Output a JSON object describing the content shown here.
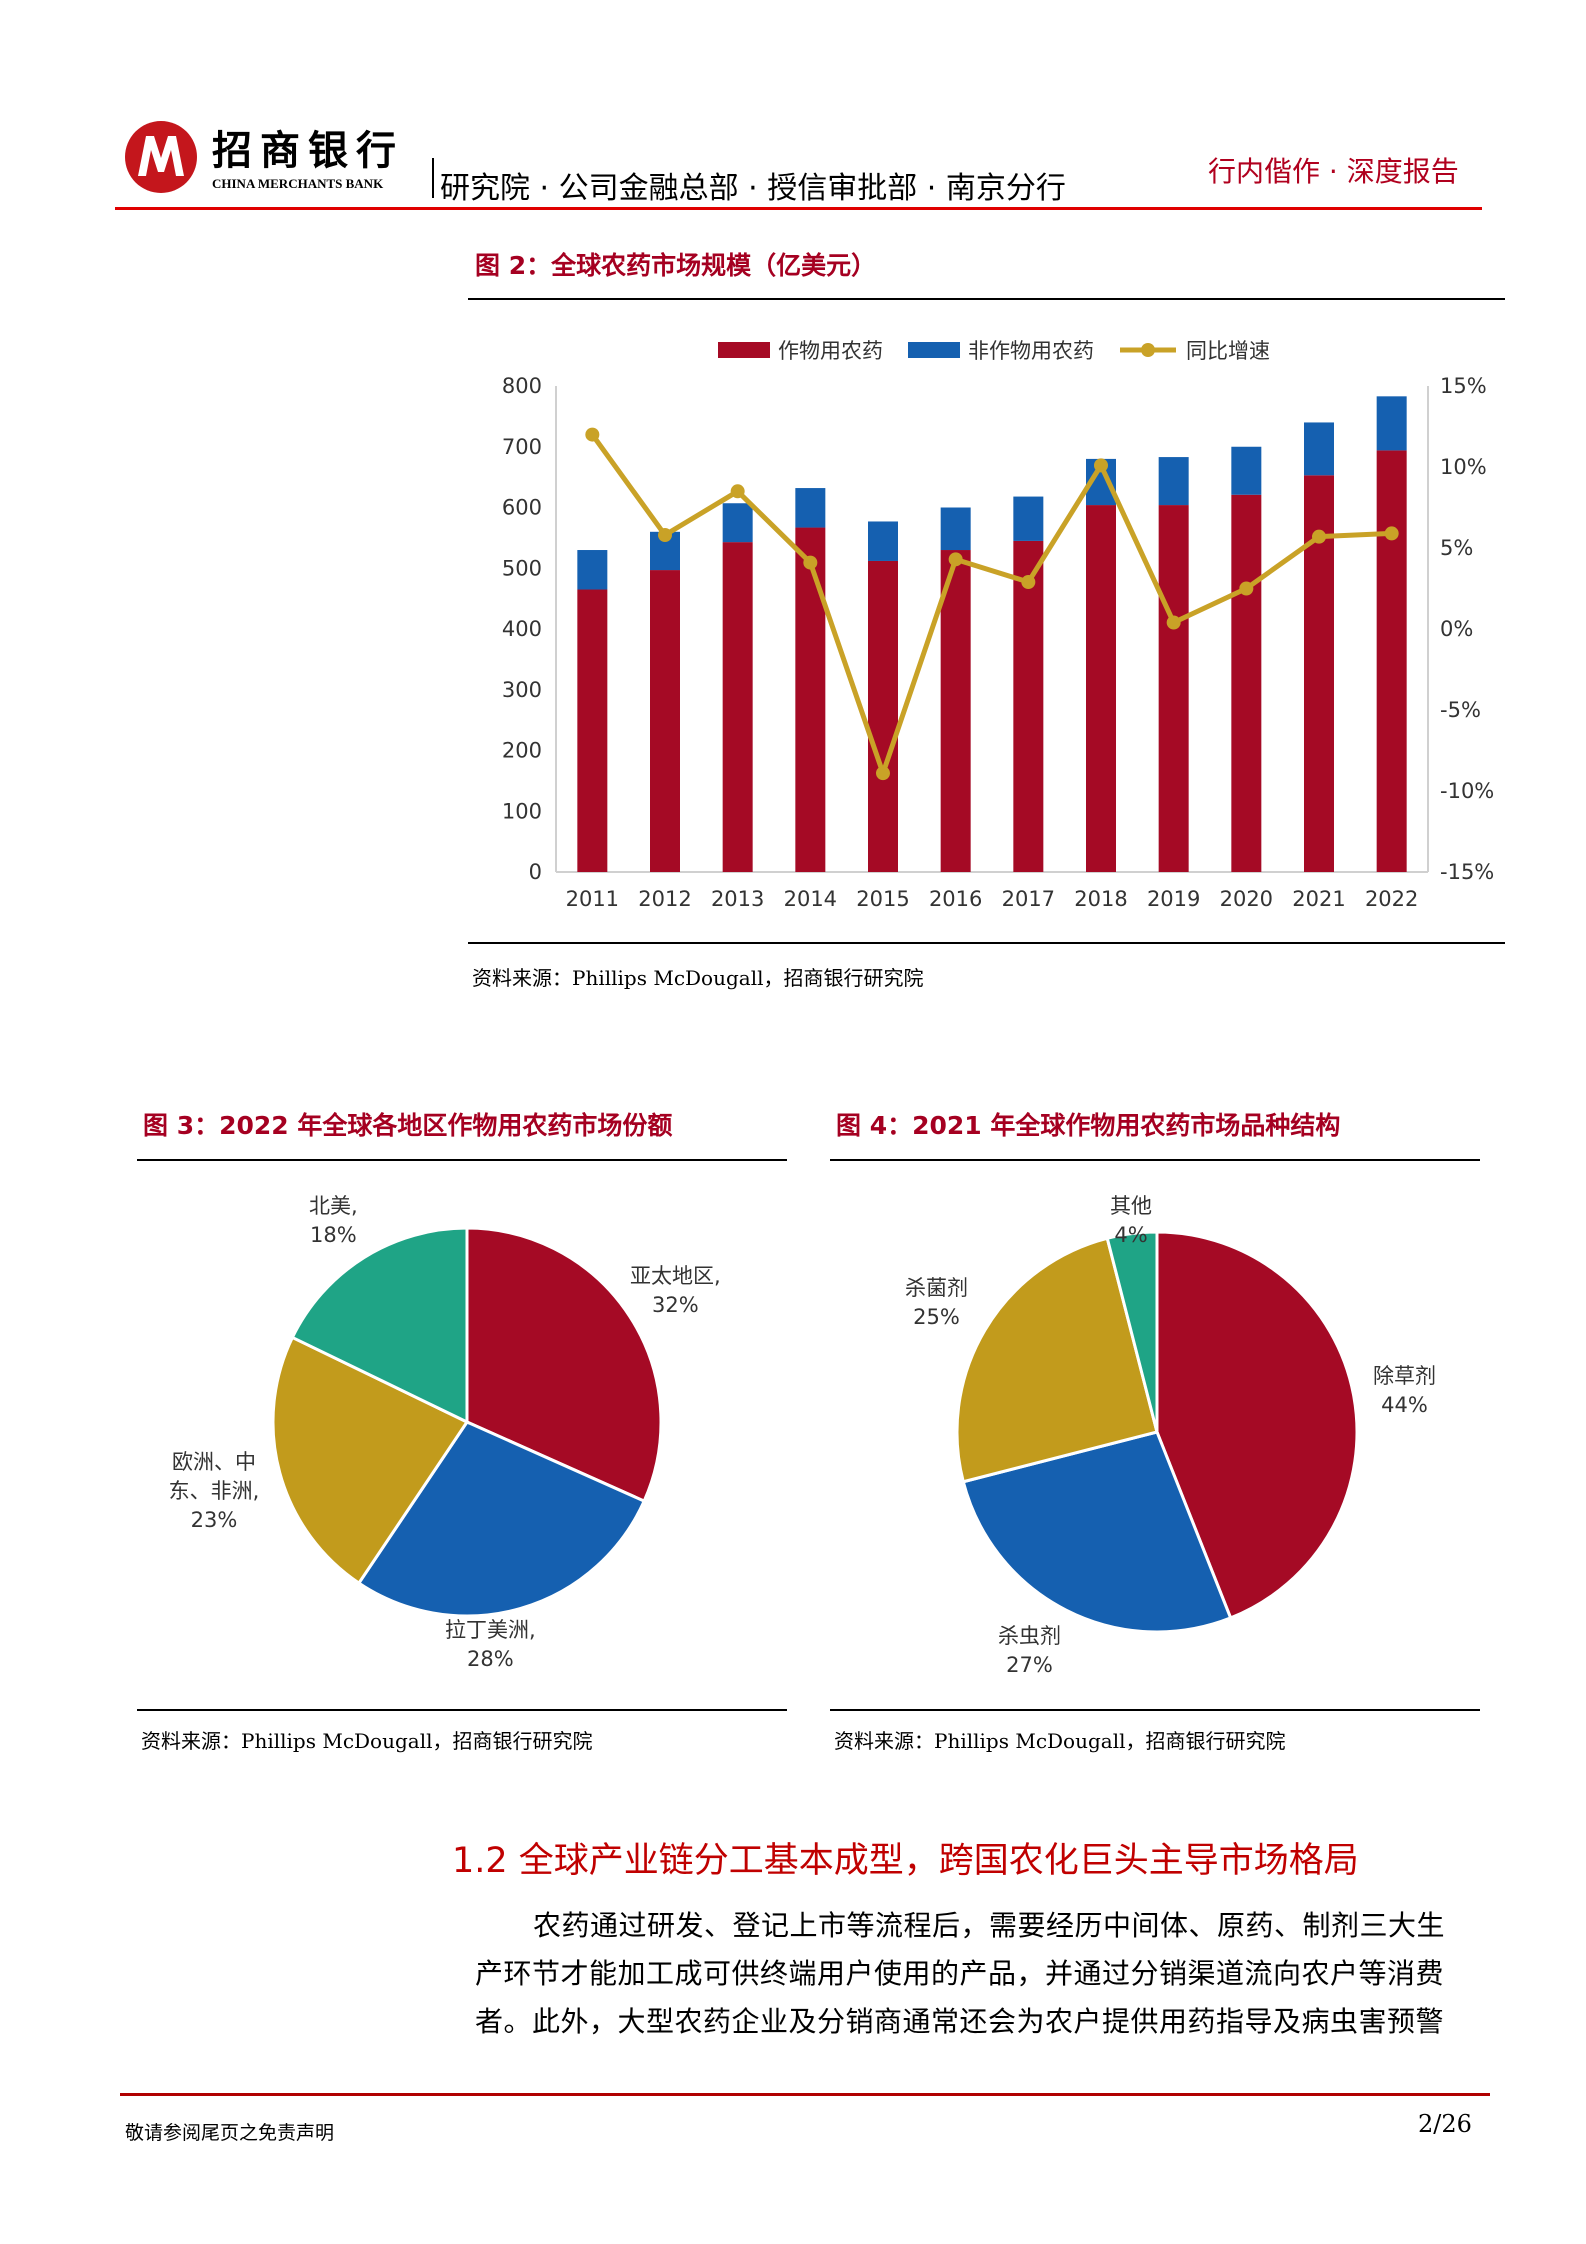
{
  "header": {
    "logo_cn": "招商银行",
    "logo_en": "CHINA MERCHANTS BANK",
    "departments": "研究院 · 公司金融总部 · 授信审批部 · 南京分行",
    "doc_type": "行内偕作 · 深度报告"
  },
  "figure2": {
    "title": "图 2：全球农药市场规模（亿美元）",
    "source": "资料来源：Phillips McDougall，招商银行研究院",
    "chart_data": {
      "type": "bar",
      "stacked": true,
      "categories": [
        "2011",
        "2012",
        "2013",
        "2014",
        "2015",
        "2016",
        "2017",
        "2018",
        "2019",
        "2020",
        "2021",
        "2022"
      ],
      "series": [
        {
          "name": "作物用农药",
          "type": "bar",
          "axis": "left",
          "color": "#a50a25",
          "values": [
            465,
            497,
            543,
            567,
            512,
            530,
            545,
            604,
            604,
            621,
            653,
            694
          ]
        },
        {
          "name": "非作物用农药",
          "type": "bar",
          "axis": "left",
          "color": "#1560b0",
          "values": [
            65,
            63,
            64,
            65,
            65,
            70,
            73,
            76,
            79,
            79,
            87,
            89
          ]
        },
        {
          "name": "同比增速",
          "type": "line",
          "axis": "right",
          "color": "#c9a227",
          "values": [
            12.0,
            5.8,
            8.5,
            4.1,
            -8.9,
            4.3,
            2.9,
            10.1,
            0.4,
            2.5,
            5.7,
            5.9
          ]
        }
      ],
      "ylim": [
        0,
        800
      ],
      "yticks": [
        "0",
        "100",
        "200",
        "300",
        "400",
        "500",
        "600",
        "700",
        "800"
      ],
      "y2lim": [
        -15,
        15
      ],
      "y2ticks": [
        "-15%",
        "-10%",
        "-5%",
        "0%",
        "5%",
        "10%",
        "15%"
      ],
      "legend": "top",
      "grid": false
    }
  },
  "figure3": {
    "title": "图 3：2022 年全球各地区作物用农药市场份额",
    "source": "资料来源：Phillips McDougall，招商银行研究院",
    "chart_data": {
      "type": "pie",
      "slices": [
        {
          "label": "亚太地区,",
          "pct": "32%",
          "value": 32,
          "color": "#a50a25"
        },
        {
          "label": "拉丁美洲,",
          "pct": "28%",
          "value": 28,
          "color": "#1560b0"
        },
        {
          "label": "欧洲、中东、非洲,",
          "pct": "23%",
          "value": 23,
          "color": "#c29b1c"
        },
        {
          "label": "北美,",
          "pct": "18%",
          "value": 18,
          "color": "#1fa486"
        }
      ]
    }
  },
  "figure4": {
    "title": "图 4：2021 年全球作物用农药市场品种结构",
    "source": "资料来源：Phillips McDougall，招商银行研究院",
    "chart_data": {
      "type": "pie",
      "slices": [
        {
          "label": "除草剂",
          "pct": "44%",
          "value": 44,
          "color": "#a50a25"
        },
        {
          "label": "杀虫剂",
          "pct": "27%",
          "value": 27,
          "color": "#1560b0"
        },
        {
          "label": "杀菌剂",
          "pct": "25%",
          "value": 25,
          "color": "#c29b1c"
        },
        {
          "label": "其他",
          "pct": "4%",
          "value": 4,
          "color": "#1fa486"
        }
      ]
    }
  },
  "section": {
    "heading": "1.2 全球产业链分工基本成型，跨国农化巨头主导市场格局",
    "lines": [
      "农药通过研发、登记上市等流程后，需要经历中间体、原药、制剂三大生",
      "产环节才能加工成可供终端用户使用的产品，并通过分销渠道流向农户等消费",
      "者。此外，大型农药企业及分销商通常还会为农户提供用药指导及病虫害预警"
    ]
  },
  "footer": {
    "disclaimer": "敬请参阅尾页之免责声明",
    "page": "2/26"
  },
  "colors": {
    "accent": "#b0001e",
    "rule": "#e00000"
  }
}
